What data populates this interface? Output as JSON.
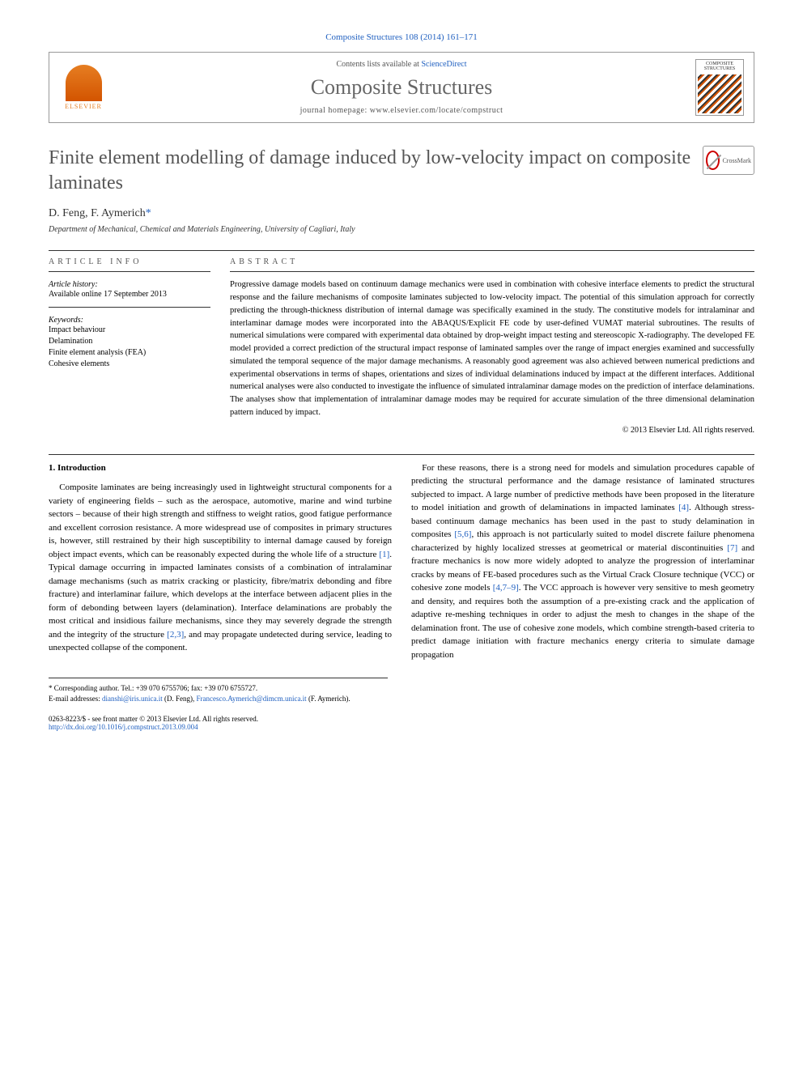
{
  "header": {
    "citation": "Composite Structures 108 (2014) 161–171",
    "contents_line_prefix": "Contents lists available at ",
    "contents_link": "ScienceDirect",
    "journal_name": "Composite Structures",
    "homepage_prefix": "journal homepage: ",
    "homepage_url": "www.elsevier.com/locate/compstruct",
    "elsevier_label": "ELSEVIER",
    "cover_label": "COMPOSITE STRUCTURES",
    "crossmark_label": "CrossMark"
  },
  "article": {
    "title": "Finite element modelling of damage induced by low-velocity impact on composite laminates",
    "authors": "D. Feng, F. Aymerich",
    "corr_marker": "*",
    "affiliation": "Department of Mechanical, Chemical and Materials Engineering, University of Cagliari, Italy"
  },
  "info": {
    "heading": "ARTICLE INFO",
    "history_label": "Article history:",
    "history_text": "Available online 17 September 2013",
    "keywords_label": "Keywords:",
    "keywords": [
      "Impact behaviour",
      "Delamination",
      "Finite element analysis (FEA)",
      "Cohesive elements"
    ]
  },
  "abstract": {
    "heading": "ABSTRACT",
    "text": "Progressive damage models based on continuum damage mechanics were used in combination with cohesive interface elements to predict the structural response and the failure mechanisms of composite laminates subjected to low-velocity impact. The potential of this simulation approach for correctly predicting the through-thickness distribution of internal damage was specifically examined in the study. The constitutive models for intralaminar and interlaminar damage modes were incorporated into the ABAQUS/Explicit FE code by user-defined VUMAT material subroutines. The results of numerical simulations were compared with experimental data obtained by drop-weight impact testing and stereoscopic X-radiography. The developed FE model provided a correct prediction of the structural impact response of laminated samples over the range of impact energies examined and successfully simulated the temporal sequence of the major damage mechanisms. A reasonably good agreement was also achieved between numerical predictions and experimental observations in terms of shapes, orientations and sizes of individual delaminations induced by impact at the different interfaces. Additional numerical analyses were also conducted to investigate the influence of simulated intralaminar damage modes on the prediction of interface delaminations. The analyses show that implementation of intralaminar damage modes may be required for accurate simulation of the three dimensional delamination pattern induced by impact.",
    "copyright": "© 2013 Elsevier Ltd. All rights reserved."
  },
  "body": {
    "section1_heading": "1. Introduction",
    "para1": "Composite laminates are being increasingly used in lightweight structural components for a variety of engineering fields – such as the aerospace, automotive, marine and wind turbine sectors – because of their high strength and stiffness to weight ratios, good fatigue performance and excellent corrosion resistance. A more widespread use of composites in primary structures is, however, still restrained by their high susceptibility to internal damage caused by foreign object impact events, which can be reasonably expected during the whole life of a structure ",
    "ref1": "[1]",
    "para1b": ". Typical damage occurring in impacted laminates consists of a combination of intralaminar damage mechanisms (such as matrix cracking or plasticity, fibre/matrix debonding and fibre fracture) and interlaminar failure, which develops at the interface between adjacent plies in the form of debonding between layers (delamination). Interface delaminations are probably the most critical and insidious failure mechanisms, ",
    "para2a": "since they may severely degrade the strength and the integrity of the structure ",
    "ref2": "[2,3]",
    "para2b": ", and may propagate undetected during service, leading to unexpected collapse of the component.",
    "para3a": "For these reasons, there is a strong need for models and simulation procedures capable of predicting the structural performance and the damage resistance of laminated structures subjected to impact. A large number of predictive methods have been proposed in the literature to model initiation and growth of delaminations in impacted laminates ",
    "ref4": "[4]",
    "para3b": ". Although stress-based continuum damage mechanics has been used in the past to study delamination in composites ",
    "ref56": "[5,6]",
    "para3c": ", this approach is not particularly suited to model discrete failure phenomena characterized by highly localized stresses at geometrical or material discontinuities ",
    "ref7": "[7]",
    "para3d": " and fracture mechanics is now more widely adopted to analyze the progression of interlaminar cracks by means of FE-based procedures such as the Virtual Crack Closure technique (VCC) or cohesive zone models ",
    "ref479": "[4,7–9]",
    "para3e": ". The VCC approach is however very sensitive to mesh geometry and density, and requires both the assumption of a pre-existing crack and the application of adaptive re-meshing techniques in order to adjust the mesh to changes in the shape of the delamination front. The use of cohesive zone models, which combine strength-based criteria to predict damage initiation with fracture mechanics energy criteria to simulate damage propagation"
  },
  "footnotes": {
    "corr_label": "* Corresponding author. Tel.: +39 070 6755706; fax: +39 070 6755727.",
    "email_label": "E-mail addresses: ",
    "email1": "dianshi@iris.unica.it",
    "email1_name": " (D. Feng), ",
    "email2": "Francesco.Aymerich@dimcm.unica.it",
    "email2_name": " (F. Aymerich)."
  },
  "bottom": {
    "issn": "0263-8223/$ - see front matter © 2013 Elsevier Ltd. All rights reserved.",
    "doi_label": "http://dx.doi.org/10.1016/j.compstruct.2013.09.004"
  },
  "colors": {
    "link": "#2060c0",
    "elsevier_orange": "#e67e22",
    "text_gray": "#555555",
    "border": "#333333"
  }
}
